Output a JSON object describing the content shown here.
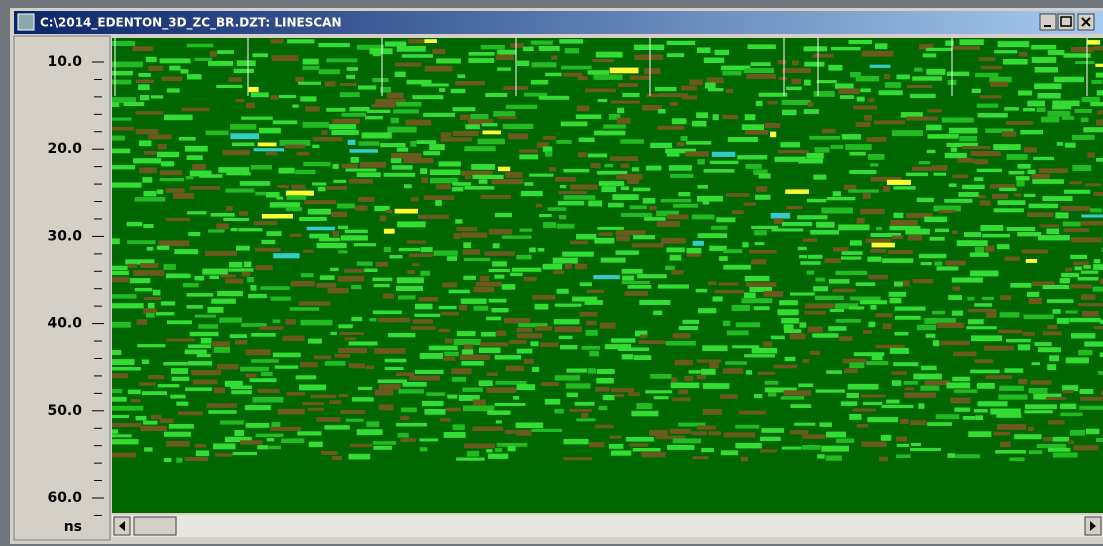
{
  "window": {
    "title": "C:\\2014_EDENTON_3D_ZC_BR.DZT: LINESCAN"
  },
  "ruler": {
    "labels": [
      "10.0",
      "20.0",
      "30.0",
      "40.0",
      "50.0",
      "60.0"
    ],
    "unit": "ns"
  }
}
